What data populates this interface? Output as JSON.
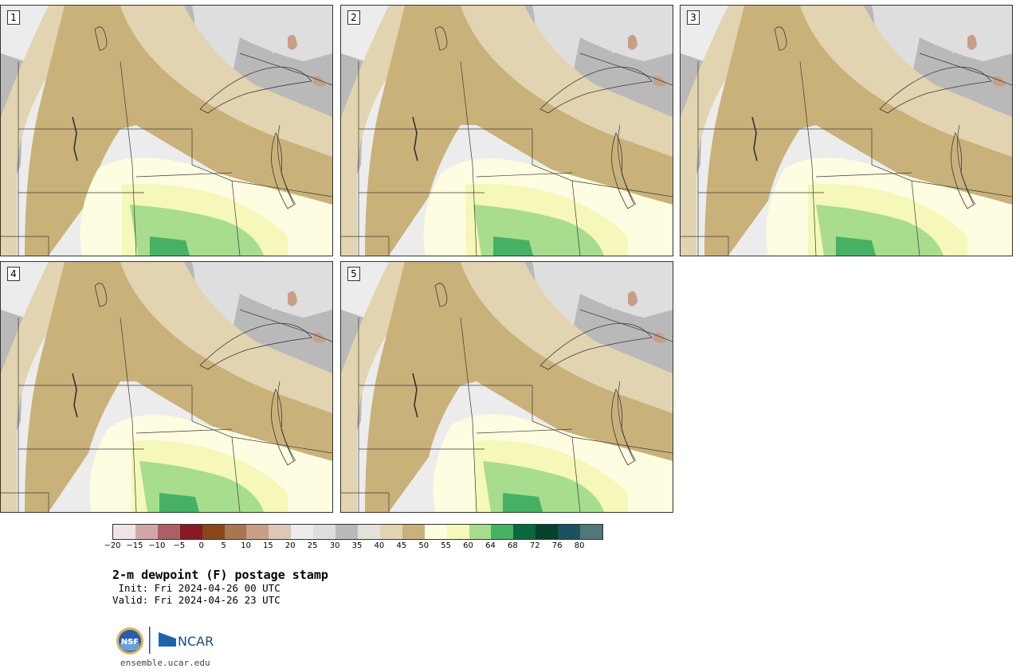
{
  "panels": [
    {
      "label": "1",
      "variant": 1
    },
    {
      "label": "2",
      "variant": 2
    },
    {
      "label": "3",
      "variant": 3
    },
    {
      "label": "4",
      "variant": 4
    },
    {
      "label": "5",
      "variant": 5
    }
  ],
  "colorbar": {
    "colors": [
      "#f1e4e4",
      "#d1a6a8",
      "#ac5f64",
      "#861b24",
      "#8a4617",
      "#a87653",
      "#c69f86",
      "#dfc6b6",
      "#ececec",
      "#dedede",
      "#b9b9b9",
      "#e4e2d8",
      "#e2d4b0",
      "#c9b17a",
      "#fefde1",
      "#f5f8b8",
      "#a8dd8e",
      "#46b163",
      "#07693c",
      "#05412b",
      "#1b5160",
      "#517779"
    ],
    "ticks": [
      "−20",
      "−15",
      "−10",
      "−5",
      "0",
      "5",
      "10",
      "15",
      "20",
      "25",
      "30",
      "35",
      "40",
      "45",
      "50",
      "55",
      "60",
      "64",
      "68",
      "72",
      "76",
      "80"
    ]
  },
  "title": "2-m dewpoint (F) postage stamp",
  "init_line": " Init: Fri 2024-04-26 00 UTC",
  "valid_line": "Valid: Fri 2024-04-26 23 UTC",
  "logos": {
    "nsf": "NSF",
    "ncar": "NCAR"
  },
  "site": "ensemble.ucar.edu"
}
